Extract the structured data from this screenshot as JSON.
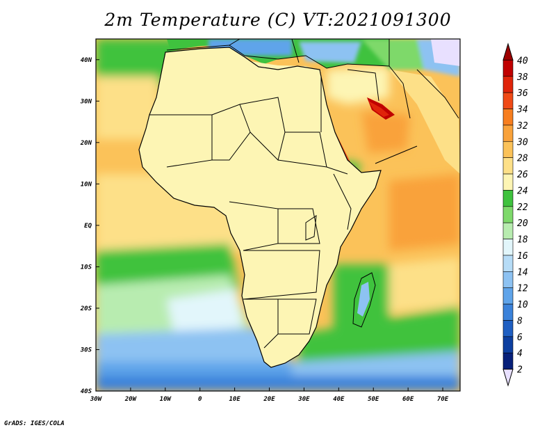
{
  "title": "2m Temperature (C) VT:2021091300",
  "credit": "GrADS: IGES/COLA",
  "map": {
    "variable": "2m Temperature",
    "unit": "C",
    "valid_time": "2021091300",
    "lon_range": [
      -30,
      75
    ],
    "lat_range": [
      -40,
      45
    ],
    "lon_ticks": [
      {
        "value": -30,
        "label": "30W"
      },
      {
        "value": -20,
        "label": "20W"
      },
      {
        "value": -10,
        "label": "10W"
      },
      {
        "value": 0,
        "label": "0"
      },
      {
        "value": 10,
        "label": "10E"
      },
      {
        "value": 20,
        "label": "20E"
      },
      {
        "value": 30,
        "label": "30E"
      },
      {
        "value": 40,
        "label": "40E"
      },
      {
        "value": 50,
        "label": "50E"
      },
      {
        "value": 60,
        "label": "60E"
      },
      {
        "value": 70,
        "label": "70E"
      }
    ],
    "lat_ticks": [
      {
        "value": 40,
        "label": "40N"
      },
      {
        "value": 30,
        "label": "30N"
      },
      {
        "value": 20,
        "label": "20N"
      },
      {
        "value": 10,
        "label": "10N"
      },
      {
        "value": 0,
        "label": "EQ"
      },
      {
        "value": -10,
        "label": "10S"
      },
      {
        "value": -20,
        "label": "20S"
      },
      {
        "value": -30,
        "label": "30S"
      },
      {
        "value": -40,
        "label": "40S"
      }
    ]
  },
  "colorbar": {
    "levels": [
      {
        "label": "40",
        "color": "#9e0000"
      },
      {
        "label": "38",
        "color": "#c00000"
      },
      {
        "label": "36",
        "color": "#e0240a"
      },
      {
        "label": "34",
        "color": "#f04a16"
      },
      {
        "label": "32",
        "color": "#f77e1f"
      },
      {
        "label": "30",
        "color": "#f9a23b"
      },
      {
        "label": "28",
        "color": "#fbc259"
      },
      {
        "label": "26",
        "color": "#fde088"
      },
      {
        "label": "24",
        "color": "#fdf5b4"
      },
      {
        "label": "22",
        "color": "#3fc23e"
      },
      {
        "label": "20",
        "color": "#7ed96b"
      },
      {
        "label": "18",
        "color": "#b8ecb0"
      },
      {
        "label": "16",
        "color": "#e2f6fb"
      },
      {
        "label": "14",
        "color": "#b6dcf7"
      },
      {
        "label": "12",
        "color": "#8dc2f2"
      },
      {
        "label": "10",
        "color": "#5fa4ea"
      },
      {
        "label": "8",
        "color": "#3b82da"
      },
      {
        "label": "6",
        "color": "#1f5fc2"
      },
      {
        "label": "4",
        "color": "#0d3fa0"
      },
      {
        "label": "2",
        "color": "#07207a"
      }
    ],
    "under_color": "#e8e0ff"
  }
}
